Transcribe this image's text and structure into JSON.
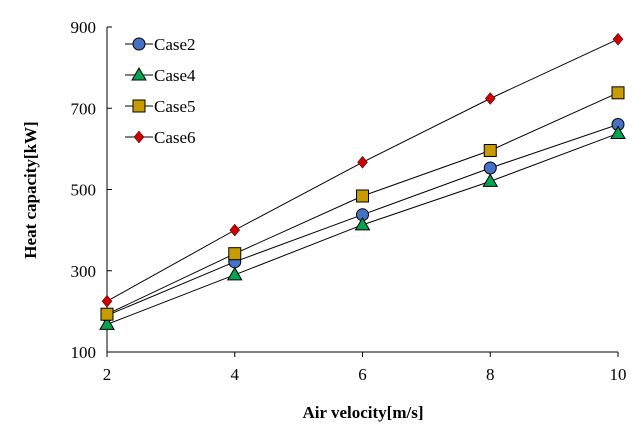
{
  "chart_data": {
    "type": "line",
    "title": "",
    "xlabel": "Air velocity[m/s]",
    "ylabel": "Heat capacity[kW]",
    "xlim": [
      2,
      10
    ],
    "ylim": [
      100,
      900
    ],
    "xticks": [
      2,
      4,
      6,
      8,
      10
    ],
    "yticks": [
      100,
      300,
      500,
      700,
      900
    ],
    "x": [
      2,
      4,
      6,
      8,
      10
    ],
    "legend_position": "top-left",
    "series": [
      {
        "name": "Case2",
        "marker": "circle",
        "color": "#4472c4",
        "values": [
          190,
          322,
          438,
          553,
          660
        ]
      },
      {
        "name": "Case4",
        "marker": "triangle",
        "color": "#00a550",
        "values": [
          168,
          290,
          413,
          520,
          638
        ]
      },
      {
        "name": "Case5",
        "marker": "square",
        "color": "#c89b00",
        "values": [
          193,
          342,
          484,
          596,
          738
        ]
      },
      {
        "name": "Case6",
        "marker": "diamond",
        "color": "#cc0000",
        "values": [
          225,
          400,
          567,
          724,
          870
        ]
      }
    ]
  }
}
